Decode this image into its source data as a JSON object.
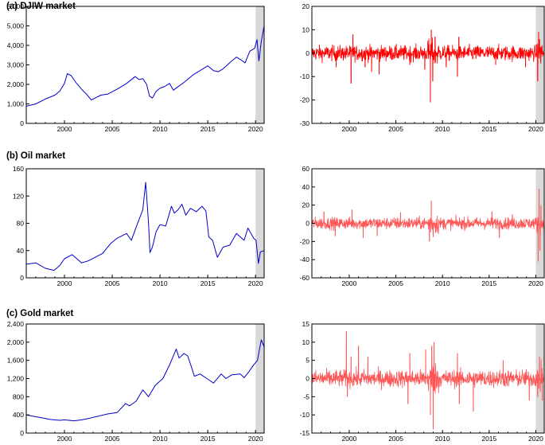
{
  "chart_data": [
    {
      "type": "line",
      "title": "(a) DJIW market",
      "x_range": [
        1996,
        2020.9
      ],
      "ylim": [
        0,
        6000
      ],
      "yticks": [
        "0",
        "1,000",
        "2,000",
        "3,000",
        "4,000",
        "5,000",
        "6,000"
      ],
      "xticks": [
        "2000",
        "2005",
        "2010",
        "2015",
        "2020"
      ],
      "shaded_period": [
        2020.0,
        2020.9
      ],
      "line_color": "#0000cc",
      "series": [
        {
          "x": [
            1996,
            1997,
            1998,
            1999,
            1999.5,
            2000.0,
            2000.3,
            2000.7,
            2001.2,
            2001.8,
            2002.3,
            2002.8,
            2003.2,
            2003.8,
            2004.5,
            2005.5,
            2006.5,
            2007.4,
            2007.8,
            2008.2,
            2008.6,
            2008.9,
            2009.2,
            2009.6,
            2010,
            2010.5,
            2011,
            2011.4,
            2011.8,
            2012.5,
            2013.5,
            2014.5,
            2015,
            2015.6,
            2016.1,
            2016.6,
            2017.5,
            2018,
            2018.5,
            2018.9,
            2019.4,
            2019.9,
            2020.15,
            2020.35,
            2020.6,
            2020.9
          ],
          "y": [
            880,
            1000,
            1250,
            1450,
            1650,
            2050,
            2550,
            2450,
            2100,
            1750,
            1500,
            1200,
            1300,
            1450,
            1500,
            1750,
            2050,
            2400,
            2250,
            2300,
            2000,
            1400,
            1300,
            1650,
            1800,
            1900,
            2050,
            1700,
            1850,
            2100,
            2500,
            2800,
            2950,
            2700,
            2650,
            2800,
            3200,
            3400,
            3250,
            3100,
            3700,
            3850,
            4300,
            3200,
            4200,
            5000
          ]
        }
      ]
    },
    {
      "type": "line",
      "title": "",
      "x_range": [
        1996,
        2020.9
      ],
      "ylim": [
        -30,
        20
      ],
      "yticks": [
        "-30",
        "-20",
        "-10",
        "0",
        "10",
        "20"
      ],
      "xticks": [
        "2000",
        "2005",
        "2010",
        "2015",
        "2020"
      ],
      "shaded_period": [
        2020.0,
        2020.9
      ],
      "line_color": "#ff0000",
      "noise_band": 3,
      "spikes": [
        {
          "x": 1998.6,
          "y": -6
        },
        {
          "x": 2000.2,
          "y": -13
        },
        {
          "x": 2000.4,
          "y": 8
        },
        {
          "x": 2001.7,
          "y": -6
        },
        {
          "x": 2002.4,
          "y": -8
        },
        {
          "x": 2003.2,
          "y": -9
        },
        {
          "x": 2006.5,
          "y": -5
        },
        {
          "x": 2008.1,
          "y": -7
        },
        {
          "x": 2008.7,
          "y": -21
        },
        {
          "x": 2008.8,
          "y": 10
        },
        {
          "x": 2008.95,
          "y": -12
        },
        {
          "x": 2009.2,
          "y": 7
        },
        {
          "x": 2010.4,
          "y": -6
        },
        {
          "x": 2011.6,
          "y": -10
        },
        {
          "x": 2011.75,
          "y": 7
        },
        {
          "x": 2015.7,
          "y": -5
        },
        {
          "x": 2018.9,
          "y": -6
        },
        {
          "x": 2020.2,
          "y": -12
        },
        {
          "x": 2020.3,
          "y": 9
        },
        {
          "x": 2020.4,
          "y": 6
        }
      ]
    },
    {
      "type": "line",
      "title": "(b) Oil market",
      "x_range": [
        1996,
        2020.9
      ],
      "ylim": [
        0,
        160
      ],
      "yticks": [
        "0",
        "40",
        "80",
        "120",
        "160"
      ],
      "xticks": [
        "2000",
        "2005",
        "2010",
        "2015",
        "2020"
      ],
      "shaded_period": [
        2020.0,
        2020.9
      ],
      "line_color": "#0000cc",
      "series": [
        {
          "x": [
            1996,
            1997,
            1998,
            1998.9,
            1999.5,
            2000,
            2000.8,
            2001.8,
            2002.5,
            2003.2,
            2004,
            2004.8,
            2005.5,
            2006.5,
            2007,
            2007.6,
            2008.2,
            2008.5,
            2008.8,
            2008.95,
            2009.2,
            2009.6,
            2010,
            2010.6,
            2011.2,
            2011.5,
            2011.9,
            2012.3,
            2012.7,
            2013.2,
            2013.8,
            2014.4,
            2014.8,
            2015.1,
            2015.5,
            2016.0,
            2016.6,
            2017.3,
            2018.0,
            2018.8,
            2019.2,
            2019.8,
            2020.05,
            2020.3,
            2020.5,
            2020.9
          ],
          "y": [
            20,
            22,
            14,
            11,
            18,
            28,
            34,
            22,
            25,
            30,
            36,
            50,
            58,
            65,
            55,
            78,
            100,
            140,
            80,
            37,
            45,
            68,
            78,
            76,
            105,
            95,
            100,
            108,
            92,
            102,
            97,
            105,
            98,
            60,
            55,
            30,
            45,
            48,
            65,
            55,
            73,
            58,
            55,
            21,
            38,
            40
          ]
        }
      ]
    },
    {
      "type": "line",
      "title": "",
      "x_range": [
        1996,
        2020.9
      ],
      "ylim": [
        -60,
        60
      ],
      "yticks": [
        "-60",
        "-40",
        "-20",
        "0",
        "20",
        "40",
        "60"
      ],
      "xticks": [
        "2000",
        "2005",
        "2010",
        "2015",
        "2020"
      ],
      "shaded_period": [
        2020.0,
        2020.9
      ],
      "line_color": "#ff5555",
      "noise_band": 6,
      "spikes": [
        {
          "x": 1997.3,
          "y": 13
        },
        {
          "x": 1998.5,
          "y": -14
        },
        {
          "x": 2000.3,
          "y": 15
        },
        {
          "x": 2001.5,
          "y": -16
        },
        {
          "x": 2003.0,
          "y": -14
        },
        {
          "x": 2005.5,
          "y": 12
        },
        {
          "x": 2008.6,
          "y": -20
        },
        {
          "x": 2008.8,
          "y": 25
        },
        {
          "x": 2009.0,
          "y": -15
        },
        {
          "x": 2015.3,
          "y": 13
        },
        {
          "x": 2016.1,
          "y": -16
        },
        {
          "x": 2017.5,
          "y": 10
        },
        {
          "x": 2020.25,
          "y": -42
        },
        {
          "x": 2020.35,
          "y": 38
        },
        {
          "x": 2020.45,
          "y": -30
        },
        {
          "x": 2020.55,
          "y": 20
        }
      ]
    },
    {
      "type": "line",
      "title": "(c) Gold market",
      "x_range": [
        1996,
        2020.9
      ],
      "ylim": [
        0,
        2400
      ],
      "yticks": [
        "0",
        "400",
        "800",
        "1,200",
        "1,600",
        "2,000",
        "2,400"
      ],
      "xticks": [
        "2000",
        "2005",
        "2010",
        "2015",
        "2020"
      ],
      "shaded_period": [
        2020.0,
        2020.9
      ],
      "line_color": "#0000cc",
      "series": [
        {
          "x": [
            1996,
            1997,
            1997.8,
            1998.5,
            1999.5,
            2000,
            2001,
            2001.8,
            2002.5,
            2003.5,
            2004.5,
            2005.5,
            2006.4,
            2006.8,
            2007.5,
            2008.2,
            2008.8,
            2009.5,
            2010.3,
            2011.0,
            2011.7,
            2012.0,
            2012.5,
            2012.9,
            2013.3,
            2013.6,
            2014.2,
            2014.9,
            2015.6,
            2016.4,
            2016.9,
            2017.5,
            2018.4,
            2018.8,
            2019.3,
            2019.8,
            2020.2,
            2020.6,
            2020.9
          ],
          "y": [
            400,
            360,
            330,
            300,
            280,
            290,
            270,
            290,
            320,
            370,
            420,
            450,
            650,
            600,
            700,
            950,
            800,
            1050,
            1200,
            1500,
            1850,
            1650,
            1750,
            1700,
            1450,
            1250,
            1300,
            1200,
            1100,
            1300,
            1200,
            1280,
            1300,
            1220,
            1350,
            1500,
            1600,
            2050,
            1900
          ]
        }
      ]
    },
    {
      "type": "line",
      "title": "",
      "x_range": [
        1996,
        2020.9
      ],
      "ylim": [
        -15,
        15
      ],
      "yticks": [
        "-15",
        "-10",
        "-5",
        "0",
        "5",
        "10",
        "15"
      ],
      "xticks": [
        "2000",
        "2005",
        "2010",
        "2015",
        "2020"
      ],
      "shaded_period": [
        2020.0,
        2020.9
      ],
      "line_color": "#ff5555",
      "noise_band": 2.2,
      "spikes": [
        {
          "x": 1999.7,
          "y": 13
        },
        {
          "x": 1999.8,
          "y": -5
        },
        {
          "x": 2000.2,
          "y": 6
        },
        {
          "x": 2001.0,
          "y": 9
        },
        {
          "x": 2002.0,
          "y": 6
        },
        {
          "x": 2006.3,
          "y": -7
        },
        {
          "x": 2006.5,
          "y": 7
        },
        {
          "x": 2008.2,
          "y": 8
        },
        {
          "x": 2008.7,
          "y": -10
        },
        {
          "x": 2008.85,
          "y": 9
        },
        {
          "x": 2009.0,
          "y": -14
        },
        {
          "x": 2009.1,
          "y": 10
        },
        {
          "x": 2011.6,
          "y": 7
        },
        {
          "x": 2011.8,
          "y": -7
        },
        {
          "x": 2013.3,
          "y": -9
        },
        {
          "x": 2016.5,
          "y": 5
        },
        {
          "x": 2019.3,
          "y": -6
        },
        {
          "x": 2020.2,
          "y": -5
        },
        {
          "x": 2020.4,
          "y": 6
        },
        {
          "x": 2020.7,
          "y": -6
        }
      ]
    }
  ]
}
